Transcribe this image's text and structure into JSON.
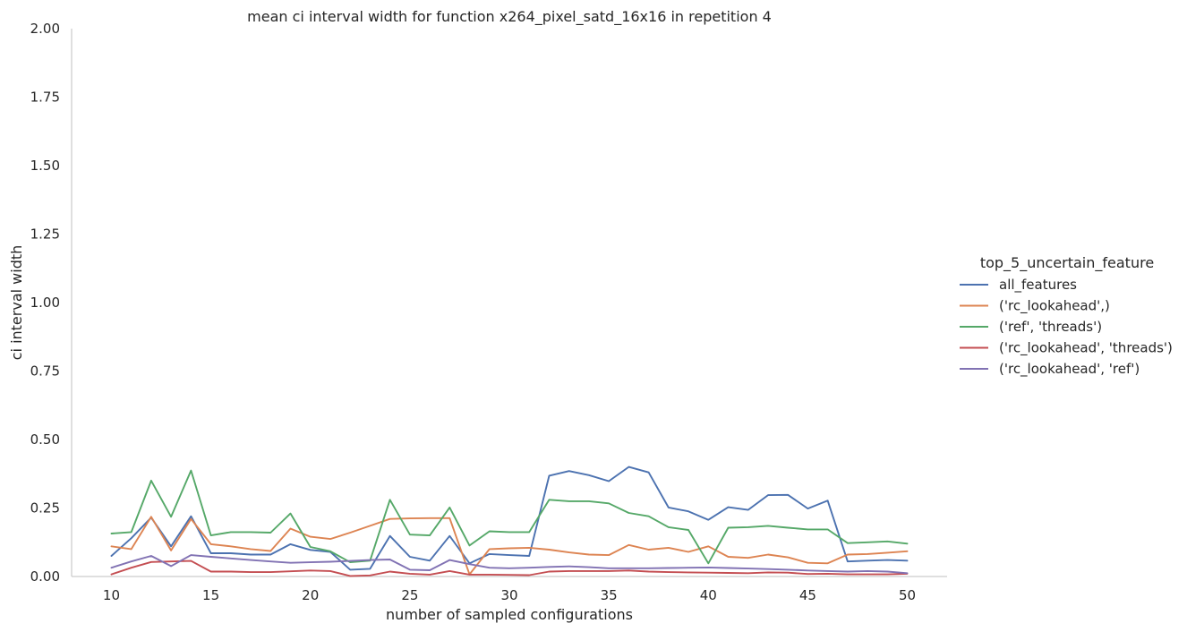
{
  "chart_data": {
    "type": "line",
    "title": "mean ci interval width for function x264_pixel_satd_16x16 in repetition 4",
    "xlabel": "number of sampled configurations",
    "ylabel": "ci interval width",
    "xlim": [
      8,
      52
    ],
    "ylim": [
      0,
      2
    ],
    "xticks": [
      "10",
      "15",
      "20",
      "25",
      "30",
      "35",
      "40",
      "45",
      "50"
    ],
    "yticks": [
      "0.00",
      "0.25",
      "0.50",
      "0.75",
      "1.00",
      "1.25",
      "1.50",
      "1.75",
      "2.00"
    ],
    "grid": false,
    "legend_title": "top_5_uncertain_feature",
    "legend_position": "right",
    "x": [
      10,
      11,
      12,
      13,
      14,
      15,
      16,
      17,
      18,
      19,
      20,
      21,
      22,
      23,
      24,
      25,
      26,
      27,
      28,
      29,
      30,
      31,
      32,
      33,
      34,
      35,
      36,
      37,
      38,
      39,
      40,
      41,
      42,
      43,
      44,
      45,
      46,
      47,
      48,
      49,
      50
    ],
    "series": [
      {
        "name": "all_features",
        "color": "#4c72b0",
        "values": [
          0.075,
          0.14,
          0.215,
          0.11,
          0.22,
          0.085,
          0.085,
          0.08,
          0.08,
          0.118,
          0.097,
          0.09,
          0.025,
          0.028,
          0.148,
          0.072,
          0.058,
          0.148,
          0.048,
          0.082,
          0.078,
          0.075,
          0.368,
          0.385,
          0.37,
          0.348,
          0.4,
          0.38,
          0.252,
          0.238,
          0.207,
          0.253,
          0.243,
          0.297,
          0.298,
          0.248,
          0.277,
          0.055,
          0.058,
          0.06,
          0.058
        ]
      },
      {
        "name": "('rc_lookahead',)",
        "color": "#dd8452",
        "values": [
          0.11,
          0.1,
          0.218,
          0.095,
          0.21,
          0.118,
          0.11,
          0.1,
          0.093,
          0.175,
          0.145,
          0.137,
          0.16,
          0.185,
          0.21,
          0.212,
          0.213,
          0.213,
          0.008,
          0.1,
          0.103,
          0.105,
          0.098,
          0.088,
          0.08,
          0.078,
          0.115,
          0.098,
          0.105,
          0.09,
          0.11,
          0.072,
          0.068,
          0.08,
          0.07,
          0.05,
          0.048,
          0.08,
          0.082,
          0.087,
          0.092
        ]
      },
      {
        "name": "('ref', 'threads')",
        "color": "#55a868",
        "values": [
          0.157,
          0.162,
          0.35,
          0.218,
          0.387,
          0.15,
          0.162,
          0.162,
          0.16,
          0.23,
          0.108,
          0.092,
          0.052,
          0.058,
          0.28,
          0.153,
          0.15,
          0.252,
          0.113,
          0.165,
          0.162,
          0.162,
          0.28,
          0.275,
          0.275,
          0.267,
          0.232,
          0.22,
          0.18,
          0.17,
          0.048,
          0.178,
          0.18,
          0.185,
          0.178,
          0.172,
          0.172,
          0.122,
          0.125,
          0.128,
          0.12
        ]
      },
      {
        "name": "('rc_lookahead', 'threads')",
        "color": "#c44e52",
        "values": [
          0.008,
          0.032,
          0.053,
          0.055,
          0.057,
          0.018,
          0.018,
          0.016,
          0.016,
          0.019,
          0.022,
          0.02,
          0.002,
          0.004,
          0.018,
          0.01,
          0.007,
          0.02,
          0.007,
          0.007,
          0.006,
          0.005,
          0.018,
          0.02,
          0.02,
          0.02,
          0.022,
          0.018,
          0.016,
          0.015,
          0.014,
          0.013,
          0.012,
          0.015,
          0.014,
          0.009,
          0.01,
          0.008,
          0.008,
          0.008,
          0.01
        ]
      },
      {
        "name": "('rc_lookahead', 'ref')",
        "color": "#8172b3",
        "values": [
          0.032,
          0.055,
          0.075,
          0.038,
          0.078,
          0.072,
          0.066,
          0.06,
          0.055,
          0.05,
          0.052,
          0.054,
          0.057,
          0.06,
          0.062,
          0.025,
          0.023,
          0.06,
          0.045,
          0.032,
          0.03,
          0.032,
          0.035,
          0.037,
          0.034,
          0.03,
          0.03,
          0.03,
          0.031,
          0.032,
          0.033,
          0.031,
          0.029,
          0.027,
          0.025,
          0.022,
          0.02,
          0.018,
          0.02,
          0.018,
          0.012
        ]
      }
    ]
  }
}
